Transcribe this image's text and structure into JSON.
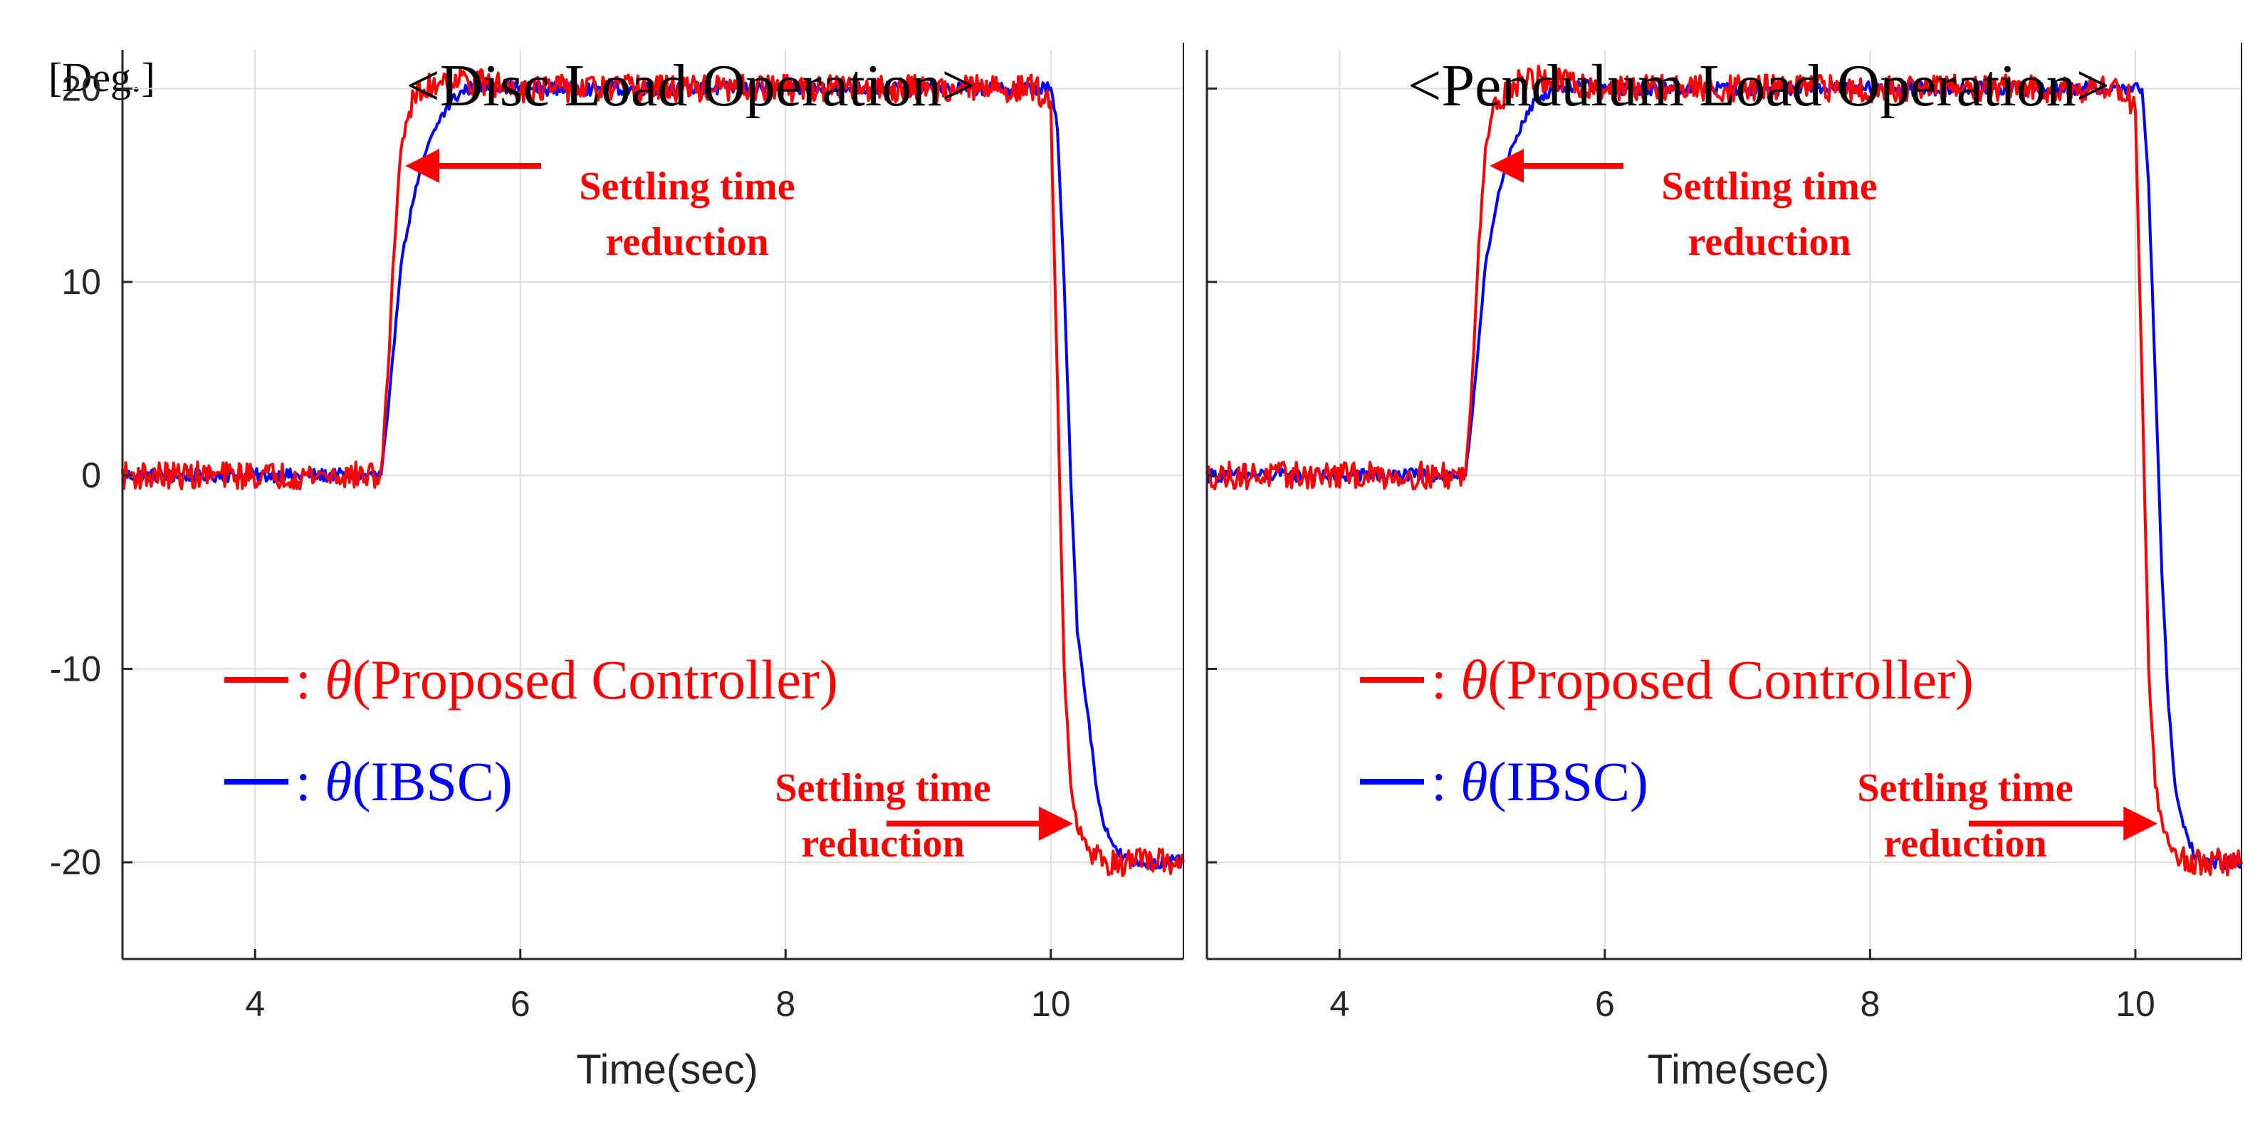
{
  "figure": {
    "unit_label": "[Deg.]",
    "colors": {
      "proposed": "#ff0000",
      "ibsc": "#0000ff",
      "grid": "#dcdcdc",
      "axis": "#262626"
    }
  },
  "chart_data": [
    {
      "type": "line",
      "title": "<Disc Load Operation>",
      "xlabel": "Time(sec)",
      "ylabel": "[Deg.]",
      "xlim": [
        3,
        11
      ],
      "ylim": [
        -25,
        22
      ],
      "xticks": [
        4,
        6,
        8,
        10
      ],
      "xtick_labels": [
        "4",
        "6",
        "8",
        "10"
      ],
      "yticks": [
        20,
        10,
        0,
        -10,
        -20
      ],
      "ytick_labels": [
        "20",
        "10",
        "0",
        "-10",
        "-20"
      ],
      "grid": true,
      "legend": {
        "location": "center-left",
        "entries": [
          {
            "series": "proposed",
            "prefix": ": ",
            "symbol": "θ",
            "open": "(",
            "name": "Proposed Controller",
            "close": ")"
          },
          {
            "series": "ibsc",
            "prefix": ": ",
            "symbol": "θ",
            "open": "(",
            "name": "IBSC",
            "close": ")"
          }
        ]
      },
      "annotations": [
        {
          "line1": "Settling time",
          "line2": "reduction",
          "target_x": 5.1,
          "target_y": 16
        },
        {
          "line1": "Settling time",
          "line2": "reduction",
          "target_x": 10.2,
          "target_y": -18
        }
      ],
      "series": [
        {
          "name": "θ (Proposed Controller)",
          "key": "proposed",
          "x": [
            3,
            4.0,
            4.7,
            4.95,
            5.0,
            5.05,
            5.1,
            5.15,
            5.2,
            5.3,
            5.4,
            5.5,
            6.0,
            8.0,
            9.9,
            10.0,
            10.05,
            10.1,
            10.15,
            10.2,
            10.3,
            10.4,
            10.6,
            11
          ],
          "y": [
            0,
            0,
            0,
            0,
            5,
            12,
            17,
            18.5,
            19.5,
            20,
            20.5,
            20.5,
            20,
            20,
            20,
            19,
            5,
            -10,
            -16,
            -18,
            -19.5,
            -20,
            -20,
            -20
          ]
        },
        {
          "name": "θ (IBSC)",
          "key": "ibsc",
          "x": [
            3,
            4.0,
            4.95,
            5.0,
            5.05,
            5.1,
            5.2,
            5.3,
            5.4,
            5.5,
            5.6,
            5.8,
            6.0,
            8.0,
            10.0,
            10.05,
            10.1,
            10.15,
            10.2,
            10.3,
            10.35,
            10.4,
            10.5,
            10.6,
            11
          ],
          "y": [
            0,
            0,
            0,
            3,
            7,
            11,
            14.5,
            17,
            18.5,
            19.5,
            20,
            20.2,
            20,
            20,
            20,
            18,
            10,
            0,
            -8,
            -13.5,
            -16.5,
            -18,
            -19.5,
            -20,
            -20
          ]
        }
      ]
    },
    {
      "type": "line",
      "title": "<Pendulum Load Operation>",
      "xlabel": "Time(sec)",
      "ylabel": "",
      "xlim": [
        3,
        10.8
      ],
      "ylim": [
        -25,
        22
      ],
      "xticks": [
        4,
        6,
        8,
        10
      ],
      "xtick_labels": [
        "4",
        "6",
        "8",
        "10"
      ],
      "yticks": [
        20,
        10,
        0,
        -10,
        -20
      ],
      "ytick_labels": [
        "",
        "",
        "",
        "",
        ""
      ],
      "grid": true,
      "legend": {
        "location": "center-left",
        "entries": [
          {
            "series": "proposed",
            "prefix": ": ",
            "symbol": "θ",
            "open": "(",
            "name": "Proposed Controller",
            "close": ")"
          },
          {
            "series": "ibsc",
            "prefix": ": ",
            "symbol": "θ",
            "open": "(",
            "name": "IBSC",
            "close": ")"
          }
        ]
      },
      "annotations": [
        {
          "line1": "Settling time",
          "line2": "reduction",
          "target_x": 5.1,
          "target_y": 16
        },
        {
          "line1": "Settling time",
          "line2": "reduction",
          "target_x": 10.2,
          "target_y": -18
        }
      ],
      "series": [
        {
          "name": "θ (Proposed Controller)",
          "key": "proposed",
          "x": [
            3,
            4.0,
            4.7,
            4.95,
            5.0,
            5.05,
            5.1,
            5.15,
            5.2,
            5.3,
            5.4,
            5.5,
            6.0,
            8.0,
            9.9,
            10.0,
            10.05,
            10.1,
            10.15,
            10.2,
            10.3,
            10.4,
            10.6,
            10.8
          ],
          "y": [
            0,
            0,
            0,
            0,
            5,
            12,
            17,
            18.5,
            19.5,
            20,
            20.5,
            20.5,
            20,
            20,
            20,
            19,
            5,
            -10,
            -16,
            -18,
            -19.5,
            -20,
            -20,
            -20
          ]
        },
        {
          "name": "θ (IBSC)",
          "key": "ibsc",
          "x": [
            3,
            4.0,
            4.95,
            5.0,
            5.05,
            5.1,
            5.2,
            5.3,
            5.4,
            5.5,
            5.6,
            5.8,
            6.0,
            8.0,
            10.0,
            10.05,
            10.1,
            10.15,
            10.2,
            10.25,
            10.3,
            10.35,
            10.4,
            10.5,
            10.6,
            10.8
          ],
          "y": [
            0,
            0,
            0,
            3,
            7,
            11,
            14.5,
            17,
            18.5,
            19.5,
            20,
            20.2,
            20,
            20,
            20,
            20,
            15,
            5,
            -5,
            -12,
            -16,
            -18,
            -19,
            -20,
            -20,
            -20
          ]
        }
      ]
    }
  ]
}
